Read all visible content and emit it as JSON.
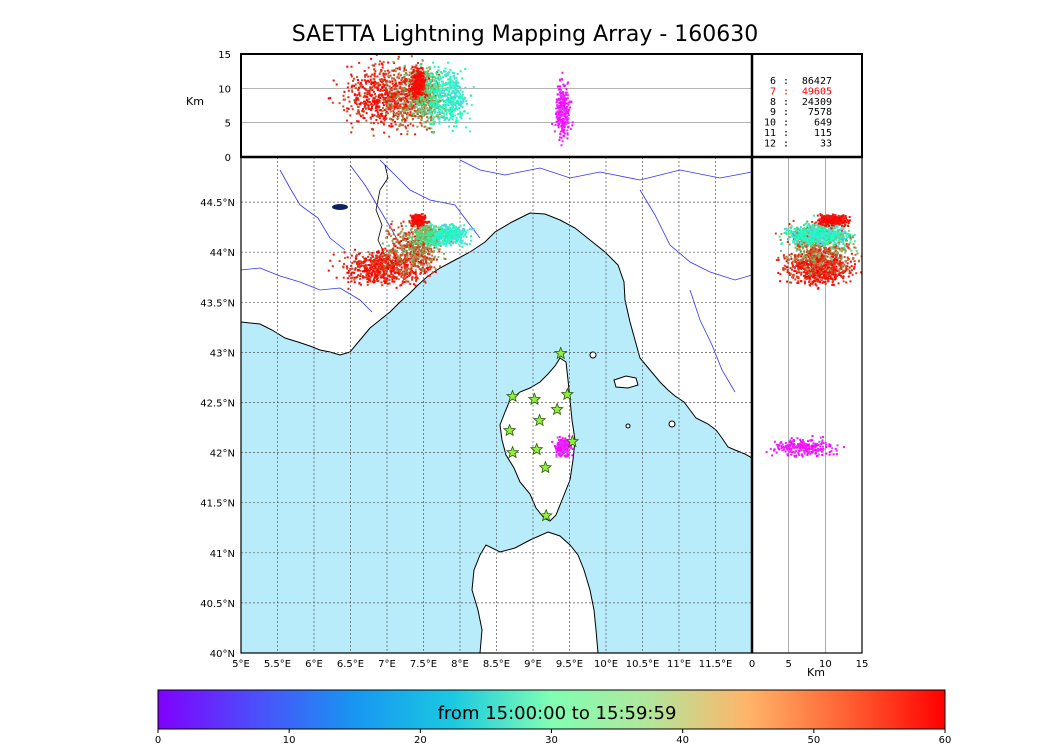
{
  "title": "SAETTA Lightning Mapping Array - 160630",
  "colors": {
    "sea": "#b8ecfb",
    "land": "#ffffff",
    "river": "#3333ee",
    "frame": "#000000",
    "grid": "#555555",
    "highlight": "#ff0000",
    "station_fill": "#90ee44",
    "station_stroke": "#2a5a00"
  },
  "map_axes": {
    "lon_ticks": [
      "5°E",
      "5.5°E",
      "6°E",
      "6.5°E",
      "7°E",
      "7.5°E",
      "8°E",
      "8.5°E",
      "9°E",
      "9.5°E",
      "10°E",
      "10.5°E",
      "11°E",
      "11.5°E"
    ],
    "lat_ticks": [
      "40°N",
      "40.5°N",
      "41°N",
      "41.5°N",
      "42°N",
      "42.5°N",
      "43°N",
      "43.5°N",
      "44°N",
      "44.5°N"
    ],
    "lon_range": [
      5.0,
      12.0
    ],
    "lat_range": [
      40.0,
      44.95
    ],
    "grid": true
  },
  "alt_axis": {
    "label": "Km",
    "ticks": [
      "0",
      "5",
      "10",
      "15"
    ],
    "range": [
      0,
      15
    ]
  },
  "station_counts": [
    {
      "stations": "6",
      "count": "86427",
      "highlight": false
    },
    {
      "stations": "7",
      "count": "49605",
      "highlight": true
    },
    {
      "stations": "8",
      "count": "24309",
      "highlight": false
    },
    {
      "stations": "9",
      "count": "7578",
      "highlight": false
    },
    {
      "stations": "10",
      "count": "649",
      "highlight": false
    },
    {
      "stations": "11",
      "count": "115",
      "highlight": false
    },
    {
      "stations": "12",
      "count": "33",
      "highlight": false
    }
  ],
  "colorbar": {
    "label": "from 15:00:00 to 15:59:59",
    "ticks": [
      "0",
      "10",
      "20",
      "30",
      "40",
      "50",
      "60"
    ],
    "range": [
      0,
      60
    ],
    "colormap": "rainbow"
  },
  "chart_data": {
    "type": "scatter",
    "title": "SAETTA Lightning Mapping Array - 160630",
    "color_scale": "minutes after 15:00 (0–60)",
    "stations": [
      [
        9.38,
        42.99
      ],
      [
        8.72,
        42.56
      ],
      [
        9.02,
        42.53
      ],
      [
        9.47,
        42.58
      ],
      [
        9.33,
        42.43
      ],
      [
        9.09,
        42.32
      ],
      [
        8.68,
        42.22
      ],
      [
        9.54,
        42.11
      ],
      [
        9.05,
        42.03
      ],
      [
        8.72,
        42.0
      ],
      [
        9.17,
        41.85
      ],
      [
        9.18,
        41.37
      ]
    ],
    "source_clusters": [
      {
        "lon": 6.95,
        "lat": 43.85,
        "lon_spread": 0.28,
        "lat_spread": 0.08,
        "alt": 9,
        "alt_spread": 2.2,
        "time": 58,
        "time_spread": 3
      },
      {
        "lon": 7.35,
        "lat": 44.05,
        "lon_spread": 0.18,
        "lat_spread": 0.12,
        "alt": 9,
        "alt_spread": 2.2,
        "time": 52,
        "time_spread": 6
      },
      {
        "lon": 7.55,
        "lat": 44.18,
        "lon_spread": 0.1,
        "lat_spread": 0.05,
        "alt": 9,
        "alt_spread": 2.0,
        "time": 42,
        "time_spread": 6
      },
      {
        "lon": 7.85,
        "lat": 44.18,
        "lon_spread": 0.12,
        "lat_spread": 0.05,
        "alt": 9,
        "alt_spread": 2.0,
        "time": 25,
        "time_spread": 5
      },
      {
        "lon": 7.42,
        "lat": 44.33,
        "lon_spread": 0.05,
        "lat_spread": 0.03,
        "alt": 11,
        "alt_spread": 1.0,
        "time": 59,
        "time_spread": 1
      },
      {
        "lon": 9.4,
        "lat": 42.06,
        "lon_spread": 0.05,
        "lat_spread": 0.04,
        "alt": 7,
        "alt_spread": 2.0,
        "time": 2,
        "time_spread": 2
      }
    ]
  }
}
